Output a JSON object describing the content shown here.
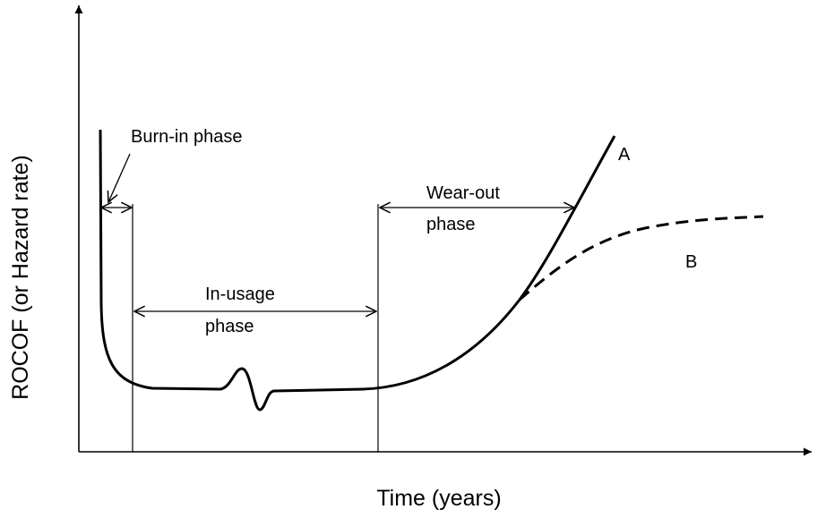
{
  "diagram": {
    "y_axis_label": "ROCOF (or Hazard rate)",
    "x_axis_label": "Time (years)",
    "phases": [
      {
        "label": "Burn-in phase"
      },
      {
        "label_lines": [
          "In-usage",
          "phase"
        ]
      },
      {
        "label_lines": [
          "Wear-out",
          "phase"
        ]
      }
    ],
    "curves": [
      {
        "label": "A"
      },
      {
        "label": "B"
      }
    ]
  }
}
